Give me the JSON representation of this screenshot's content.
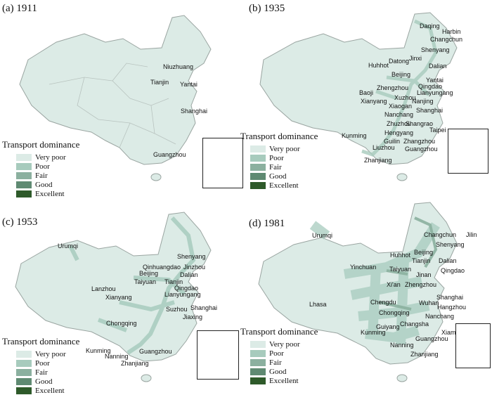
{
  "legend": {
    "title": "Transport dominance",
    "levels": [
      {
        "label": "Very poor",
        "color": "#dcebe6"
      },
      {
        "label": "Poor",
        "color": "#a7cbbd"
      },
      {
        "label": "Fair",
        "color": "#8bb09f"
      },
      {
        "label": "Good",
        "color": "#5f8a72"
      },
      {
        "label": "Excellent",
        "color": "#2e5a2a"
      }
    ]
  },
  "panels": [
    {
      "label": "(a) 1911",
      "cities": [
        "Niuzhuang",
        "Tianjin",
        "Yantai",
        "Shanghai",
        "Guangzhou"
      ]
    },
    {
      "label": "(b) 1935",
      "cities": [
        "Daqing",
        "Harbin",
        "Changchun",
        "Shenyang",
        "Jinxi",
        "Dalian",
        "Huhhot",
        "Datong",
        "Beijing",
        "Yantai",
        "Qingdao",
        "Lianyungang",
        "Baoji",
        "Zhengzhou",
        "Xuzhou",
        "Xianyang",
        "Xiaogan",
        "Nanjing",
        "Shanghai",
        "Nanchang",
        "Zhuzhou",
        "Shangrao",
        "Hengyang",
        "Taipei",
        "Kunming",
        "Guilin",
        "Zhangzhou",
        "Liuzhou",
        "Guangzhou",
        "Zhanjiang"
      ]
    },
    {
      "label": "(c) 1953",
      "cities": [
        "Urumqi",
        "Shenyang",
        "Qinhuangdao",
        "Jinzhou",
        "Beijing",
        "Dalian",
        "Taiyuan",
        "Tianjin",
        "Qingdao",
        "Lanzhou",
        "Lianyungang",
        "Xianyang",
        "Suzhou",
        "Shanghai",
        "Jiaxing",
        "Chongqing",
        "Kunming",
        "Nanning",
        "Guangzhou",
        "Zhanjiang"
      ]
    },
    {
      "label": "(d) 1981",
      "cities": [
        "Urumqi",
        "Changchun",
        "Jilin",
        "Shenyang",
        "Huhhot",
        "Beijing",
        "Tianjin",
        "Dalian",
        "Yinchuan",
        "Taiyuan",
        "Jinan",
        "Qingdao",
        "Xi'an",
        "Zhengzhou",
        "Lhasa",
        "Chengdu",
        "Wuhan",
        "Shanghai",
        "Chongqing",
        "Hangzhou",
        "Nanchang",
        "Changsha",
        "Guiyang",
        "Kunming",
        "Xiamen",
        "Guangzhou",
        "Nanning",
        "Zhanjiang"
      ]
    }
  ]
}
